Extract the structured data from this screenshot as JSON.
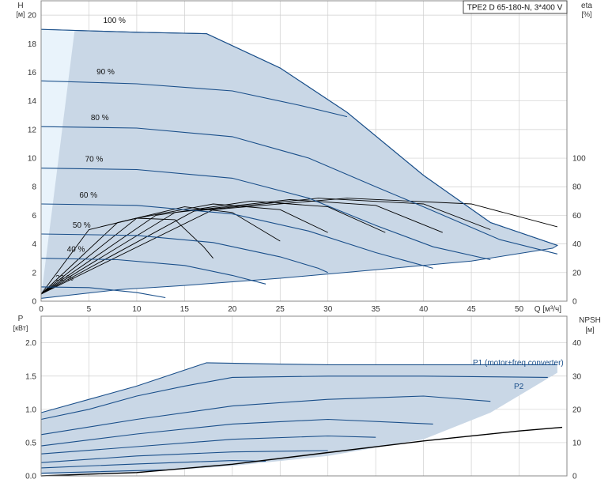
{
  "model_label": "TPE2 D 65-180-N, 3*400 V",
  "colors": {
    "envelope_fill": "#c9d7e6",
    "envelope_light": "#e9f3fb",
    "curve": "#1a4f8a",
    "eta": "#000000",
    "grid": "#cfcfcf"
  },
  "chart_data": [
    {
      "type": "line",
      "title": "",
      "x_axis": {
        "label": "Q [м³/ч]",
        "range": [
          0,
          55
        ],
        "ticks": [
          "0",
          "5",
          "10",
          "15",
          "20",
          "25",
          "30",
          "35",
          "40",
          "45",
          "50"
        ]
      },
      "y_axis_left": {
        "label": "H",
        "unit": "[м]",
        "range": [
          0,
          21
        ],
        "ticks": [
          "0",
          "2",
          "4",
          "6",
          "8",
          "10",
          "12",
          "14",
          "16",
          "18",
          "20"
        ]
      },
      "y_axis_right": {
        "label": "eta",
        "unit": "[%]",
        "range": [
          0,
          100
        ],
        "ticks": [
          "0",
          "20",
          "40",
          "60",
          "80",
          "100"
        ]
      },
      "grid": true,
      "speed_labels": [
        "100 %",
        "90 %",
        "80 %",
        "70 %",
        "60 %",
        "50 %",
        "40 %",
        "22 %"
      ],
      "head_series": [
        {
          "name": "100 %",
          "points": [
            [
              0,
              19.0
            ],
            [
              5,
              18.9
            ],
            [
              10,
              18.8
            ],
            [
              17.3,
              18.7
            ],
            [
              25,
              16.3
            ],
            [
              32,
              13.2
            ],
            [
              40,
              8.8
            ],
            [
              47,
              5.5
            ],
            [
              54,
              3.9
            ]
          ]
        },
        {
          "name": "90 %",
          "points": [
            [
              0,
              15.4
            ],
            [
              10,
              15.2
            ],
            [
              20,
              14.7
            ],
            [
              27,
              13.7
            ],
            [
              32,
              12.9
            ]
          ]
        },
        {
          "name": "80 %",
          "points": [
            [
              0,
              12.2
            ],
            [
              10,
              12.1
            ],
            [
              20,
              11.5
            ],
            [
              28,
              10.0
            ],
            [
              35,
              8.0
            ],
            [
              40,
              6.6
            ],
            [
              48,
              4.3
            ],
            [
              54,
              3.3
            ]
          ]
        },
        {
          "name": "70 %",
          "points": [
            [
              0,
              9.3
            ],
            [
              10,
              9.2
            ],
            [
              20,
              8.6
            ],
            [
              28,
              7.2
            ],
            [
              35,
              5.3
            ],
            [
              41,
              3.8
            ],
            [
              47,
              2.9
            ]
          ]
        },
        {
          "name": "60 %",
          "points": [
            [
              0,
              6.8
            ],
            [
              10,
              6.7
            ],
            [
              20,
              6.1
            ],
            [
              28,
              4.9
            ],
            [
              35,
              3.4
            ],
            [
              41,
              2.3
            ]
          ]
        },
        {
          "name": "50 %",
          "points": [
            [
              0,
              4.7
            ],
            [
              10,
              4.6
            ],
            [
              18,
              4.1
            ],
            [
              25,
              3.1
            ],
            [
              29,
              2.3
            ],
            [
              30,
              2.0
            ]
          ]
        },
        {
          "name": "40 %",
          "points": [
            [
              0,
              3.0
            ],
            [
              8,
              2.9
            ],
            [
              15,
              2.5
            ],
            [
              20,
              1.8
            ],
            [
              23.5,
              1.2
            ]
          ]
        },
        {
          "name": "22 %",
          "points": [
            [
              0,
              1.0
            ],
            [
              5,
              0.95
            ],
            [
              10,
              0.6
            ],
            [
              13,
              0.25
            ]
          ]
        }
      ],
      "eta_series": [
        {
          "points": [
            [
              0,
              5
            ],
            [
              5,
              50
            ],
            [
              10,
              58
            ],
            [
              14,
              57
            ],
            [
              17,
              38
            ],
            [
              18,
              30
            ]
          ]
        },
        {
          "points": [
            [
              0,
              5
            ],
            [
              8,
              55
            ],
            [
              15,
              66
            ],
            [
              20,
              62
            ],
            [
              25,
              42
            ]
          ]
        },
        {
          "points": [
            [
              0,
              5
            ],
            [
              10,
              58
            ],
            [
              18,
              68
            ],
            [
              25,
              64
            ],
            [
              30,
              48
            ]
          ]
        },
        {
          "points": [
            [
              0,
              5
            ],
            [
              12,
              60
            ],
            [
              22,
              70
            ],
            [
              30,
              66
            ],
            [
              36,
              48
            ]
          ]
        },
        {
          "points": [
            [
              0,
              5
            ],
            [
              14,
              62
            ],
            [
              26,
              71
            ],
            [
              35,
              67
            ],
            [
              42,
              48
            ]
          ]
        },
        {
          "points": [
            [
              0,
              5
            ],
            [
              16,
              63
            ],
            [
              29,
              72
            ],
            [
              40,
              68
            ],
            [
              47,
              50
            ]
          ]
        },
        {
          "points": [
            [
              0,
              5
            ],
            [
              18,
              64
            ],
            [
              32,
              72
            ],
            [
              45,
              68
            ],
            [
              54,
              52
            ]
          ]
        }
      ]
    },
    {
      "type": "line",
      "title": "",
      "x_axis": {
        "label": "Q [м³/ч]",
        "range": [
          0,
          55
        ]
      },
      "y_axis_left": {
        "label": "P",
        "unit": "[кВт]",
        "range": [
          0,
          2.4
        ],
        "ticks": [
          "0.0",
          "0.5",
          "1.0",
          "1.5",
          "2.0"
        ]
      },
      "y_axis_right": {
        "label": "NPSH",
        "unit": "[м]",
        "range": [
          0,
          48
        ],
        "ticks": [
          "0",
          "10",
          "20",
          "30",
          "40"
        ]
      },
      "grid": true,
      "series_labels": [
        "P1 (motor+freq.converter)",
        "P2"
      ],
      "power_series": [
        {
          "name": "P1 (motor+freq.converter)",
          "points": [
            [
              0,
              0.95
            ],
            [
              5,
              1.15
            ],
            [
              10,
              1.35
            ],
            [
              17.3,
              1.7
            ],
            [
              25,
              1.68
            ],
            [
              30,
              1.67
            ],
            [
              35,
              1.67
            ],
            [
              45,
              1.67
            ],
            [
              54,
              1.67
            ]
          ]
        },
        {
          "name": "P2",
          "points": [
            [
              0,
              0.85
            ],
            [
              5,
              1.0
            ],
            [
              10,
              1.2
            ],
            [
              15,
              1.35
            ],
            [
              20,
              1.48
            ],
            [
              30,
              1.5
            ],
            [
              40,
              1.5
            ],
            [
              53,
              1.48
            ]
          ]
        },
        {
          "points": [
            [
              0,
              0.62
            ],
            [
              10,
              0.85
            ],
            [
              20,
              1.05
            ],
            [
              30,
              1.15
            ],
            [
              40,
              1.2
            ],
            [
              47,
              1.12
            ]
          ]
        },
        {
          "points": [
            [
              0,
              0.45
            ],
            [
              10,
              0.63
            ],
            [
              20,
              0.78
            ],
            [
              30,
              0.85
            ],
            [
              41,
              0.78
            ]
          ]
        },
        {
          "points": [
            [
              0,
              0.33
            ],
            [
              10,
              0.44
            ],
            [
              20,
              0.55
            ],
            [
              30,
              0.6
            ],
            [
              35,
              0.58
            ]
          ]
        },
        {
          "points": [
            [
              0,
              0.2
            ],
            [
              10,
              0.3
            ],
            [
              20,
              0.36
            ],
            [
              30,
              0.38
            ]
          ]
        },
        {
          "points": [
            [
              0,
              0.12
            ],
            [
              10,
              0.18
            ],
            [
              20,
              0.23
            ],
            [
              23.5,
              0.22
            ]
          ]
        },
        {
          "points": [
            [
              0,
              0.04
            ],
            [
              10,
              0.08
            ],
            [
              13,
              0.09
            ]
          ]
        }
      ],
      "npsh_series": [
        {
          "name": "NPSH",
          "points": [
            [
              0,
              0
            ],
            [
              10,
              1
            ],
            [
              20,
              3.5
            ],
            [
              30,
              7
            ],
            [
              40,
              10.5
            ],
            [
              50,
              13.5
            ],
            [
              54.5,
              14.6
            ]
          ]
        }
      ]
    }
  ]
}
